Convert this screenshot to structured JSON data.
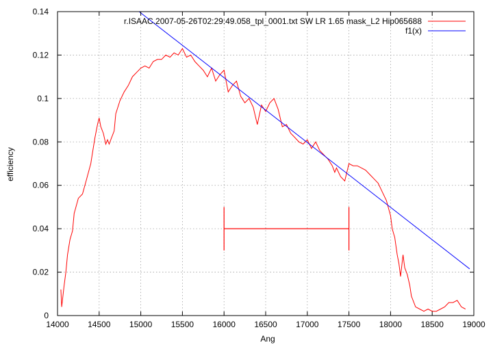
{
  "chart_data": {
    "type": "line",
    "title": "",
    "xlabel": "Ang",
    "ylabel": "efficiency",
    "xlim": [
      14000,
      19000
    ],
    "ylim": [
      0,
      0.14
    ],
    "x_ticks": [
      14000,
      14500,
      15000,
      15500,
      16000,
      16500,
      17000,
      17500,
      18000,
      18500,
      19000
    ],
    "y_ticks": [
      0,
      0.02,
      0.04,
      0.06,
      0.08,
      0.1,
      0.12,
      0.14
    ],
    "x_tick_labels": [
      "14000",
      "14500",
      "15000",
      "15500",
      "16000",
      "16500",
      "17000",
      "17500",
      "18000",
      "18500",
      "19000"
    ],
    "y_tick_labels": [
      "0",
      "0.02",
      "0.04",
      "0.06",
      "0.08",
      "0.1",
      "0.12",
      "0.14"
    ],
    "grid": true,
    "legend_position": "top-right",
    "series": [
      {
        "name": "r.ISAAC.2007-05-26T02:29:49.058_tpl_0001.txt  SW LR 1.65 mask_L2 Hip065688",
        "color": "#ff0000",
        "x": [
          14040,
          14050,
          14080,
          14100,
          14120,
          14150,
          14180,
          14200,
          14250,
          14300,
          14350,
          14400,
          14420,
          14450,
          14480,
          14500,
          14520,
          14550,
          14580,
          14600,
          14620,
          14650,
          14680,
          14700,
          14750,
          14800,
          14850,
          14900,
          14950,
          15000,
          15050,
          15100,
          15150,
          15200,
          15250,
          15300,
          15350,
          15400,
          15450,
          15500,
          15550,
          15600,
          15650,
          15700,
          15750,
          15800,
          15850,
          15900,
          15950,
          16000,
          16050,
          16100,
          16150,
          16200,
          16250,
          16300,
          16350,
          16400,
          16450,
          16500,
          16550,
          16600,
          16650,
          16700,
          16750,
          16800,
          16850,
          16900,
          16950,
          17000,
          17050,
          17100,
          17150,
          17200,
          17250,
          17300,
          17330,
          17350,
          17400,
          17450,
          17500,
          17550,
          17600,
          17650,
          17700,
          17750,
          17800,
          17850,
          17900,
          17950,
          18000,
          18020,
          18050,
          18080,
          18100,
          18120,
          18150,
          18170,
          18200,
          18230,
          18250,
          18300,
          18350,
          18400,
          18450,
          18500,
          18550,
          18600,
          18650,
          18700,
          18750,
          18800,
          18850,
          18900
        ],
        "y": [
          0.012,
          0.004,
          0.014,
          0.02,
          0.028,
          0.035,
          0.039,
          0.047,
          0.054,
          0.056,
          0.063,
          0.07,
          0.075,
          0.082,
          0.088,
          0.091,
          0.087,
          0.084,
          0.079,
          0.081,
          0.079,
          0.082,
          0.085,
          0.093,
          0.099,
          0.103,
          0.106,
          0.11,
          0.112,
          0.114,
          0.115,
          0.114,
          0.117,
          0.118,
          0.118,
          0.12,
          0.119,
          0.121,
          0.12,
          0.123,
          0.119,
          0.12,
          0.117,
          0.115,
          0.113,
          0.11,
          0.114,
          0.108,
          0.111,
          0.113,
          0.103,
          0.106,
          0.108,
          0.101,
          0.098,
          0.1,
          0.096,
          0.088,
          0.097,
          0.094,
          0.098,
          0.1,
          0.095,
          0.087,
          0.088,
          0.084,
          0.082,
          0.08,
          0.079,
          0.081,
          0.077,
          0.08,
          0.076,
          0.074,
          0.072,
          0.069,
          0.066,
          0.068,
          0.064,
          0.062,
          0.07,
          0.069,
          0.069,
          0.068,
          0.067,
          0.065,
          0.063,
          0.061,
          0.057,
          0.053,
          0.046,
          0.04,
          0.036,
          0.028,
          0.024,
          0.018,
          0.028,
          0.022,
          0.019,
          0.014,
          0.009,
          0.004,
          0.003,
          0.002,
          0.003,
          0.002,
          0.002,
          0.003,
          0.004,
          0.006,
          0.006,
          0.007,
          0.004,
          0.003
        ]
      },
      {
        "name": "f1(x)",
        "color": "#0000ff",
        "x": [
          14980,
          18950
        ],
        "y": [
          0.14,
          0.0215
        ]
      }
    ],
    "annotations": [
      {
        "type": "interval-marker",
        "color": "#ff0000",
        "x_start": 16000,
        "x_end": 17500,
        "y": 0.04,
        "y_low": 0.03,
        "y_high": 0.05
      }
    ]
  }
}
